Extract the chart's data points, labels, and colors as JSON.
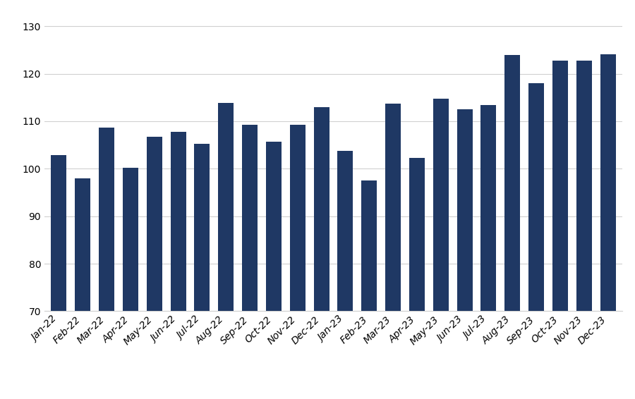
{
  "categories": [
    "Jan-22",
    "Feb-22",
    "Mar-22",
    "Apr-22",
    "May-22",
    "Jun-22",
    "Jul-22",
    "Aug-22",
    "Sep-22",
    "Oct-22",
    "Nov-22",
    "Dec-22",
    "Jan-23",
    "Feb-23",
    "Mar-23",
    "Apr-23",
    "May-23",
    "Jun-23",
    "Jul-23",
    "Aug-23",
    "Sep-23",
    "Oct-23",
    "Nov-23",
    "Dec-23"
  ],
  "values": [
    102.8,
    98.0,
    108.7,
    100.2,
    106.7,
    107.8,
    105.2,
    113.8,
    109.3,
    105.7,
    109.2,
    113.0,
    103.8,
    97.5,
    113.7,
    102.3,
    114.8,
    112.5,
    113.4,
    124.0,
    118.0,
    122.8,
    122.8,
    124.1
  ],
  "bar_color": "#1f3864",
  "background_color": "#ffffff",
  "ylim": [
    70,
    133
  ],
  "yticks": [
    70,
    80,
    90,
    100,
    110,
    120,
    130
  ],
  "grid_color": "#d0d0d0",
  "tick_fontsize": 10,
  "bar_width": 0.65
}
